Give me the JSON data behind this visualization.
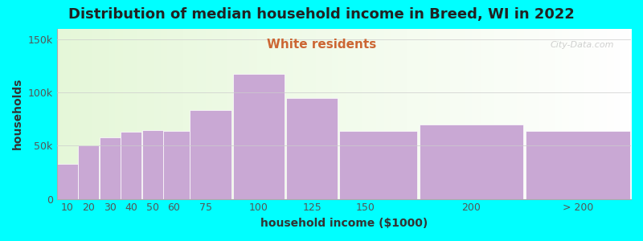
{
  "title": "Distribution of median household income in Breed, WI in 2022",
  "subtitle": "White residents",
  "xlabel": "household income ($1000)",
  "ylabel": "households",
  "background_color": "#00FFFF",
  "bar_color": "#C9A8D4",
  "bin_edges": [
    5,
    15,
    25,
    35,
    45,
    55,
    67.5,
    87.5,
    112.5,
    137.5,
    175,
    225,
    275
  ],
  "bin_label_str": [
    "10",
    "20",
    "30",
    "40",
    "50",
    "60",
    "75",
    "100",
    "125",
    "150",
    "200",
    "> 200"
  ],
  "values": [
    33000,
    50000,
    58000,
    63000,
    65000,
    64000,
    84000,
    118000,
    95000,
    64000,
    70000,
    64000
  ],
  "xlim": [
    5,
    275
  ],
  "ylim": [
    0,
    160000
  ],
  "yticks": [
    0,
    50000,
    100000,
    150000
  ],
  "ytick_labels": [
    "0",
    "50k",
    "100k",
    "150k"
  ],
  "xtick_positions": [
    10,
    20,
    30,
    40,
    50,
    60,
    75,
    100,
    125,
    150,
    200
  ],
  "xtick_gt200_pos": 250,
  "title_fontsize": 13,
  "subtitle_fontsize": 11,
  "subtitle_color": "#CC6633",
  "axis_label_fontsize": 10,
  "tick_fontsize": 9,
  "watermark": "City-Data.com"
}
